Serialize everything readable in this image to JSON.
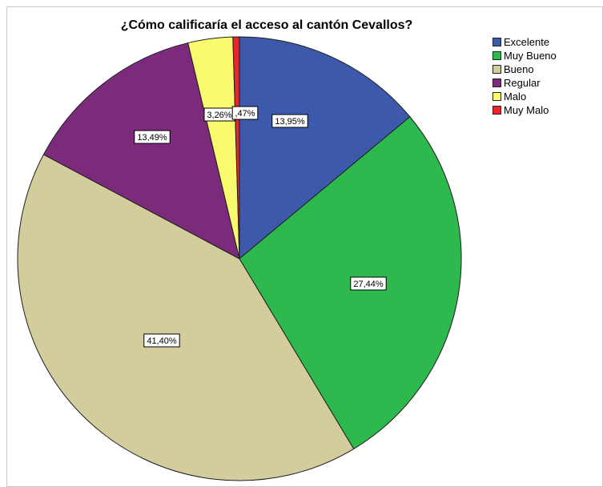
{
  "chart_data": {
    "type": "pie",
    "title": "¿Cómo calificaría el acceso al cantón Cevallos?",
    "categories": [
      "Excelente",
      "Muy Bueno",
      "Bueno",
      "Regular",
      "Malo",
      "Muy Malo"
    ],
    "values": [
      13.95,
      27.44,
      41.4,
      13.49,
      3.26,
      0.47
    ],
    "data_labels": [
      "13,95%",
      "27,44%",
      "41,40%",
      "13,49%",
      "3,26%",
      ",47%"
    ],
    "colors": [
      "#3d59ab",
      "#2db94d",
      "#d3cc9c",
      "#7c2a7b",
      "#fafa6e",
      "#e8252b"
    ],
    "legend_position": "top-right",
    "start_angle_deg": 0,
    "direction": "clockwise"
  }
}
